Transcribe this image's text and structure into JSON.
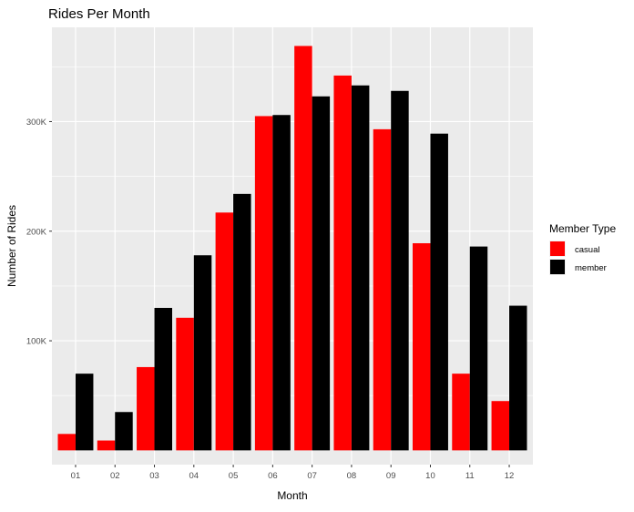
{
  "chart_data": {
    "type": "bar",
    "title": "Rides Per Month",
    "xlabel": "Month",
    "ylabel": "Number of Rides",
    "categories": [
      "01",
      "02",
      "03",
      "04",
      "05",
      "06",
      "07",
      "08",
      "09",
      "10",
      "11",
      "12"
    ],
    "series": [
      {
        "name": "casual",
        "color": "#FF0000",
        "values": [
          15000,
          9000,
          76000,
          121000,
          217000,
          305000,
          369000,
          342000,
          293000,
          189000,
          70000,
          45000
        ]
      },
      {
        "name": "member",
        "color": "#000000",
        "values": [
          70000,
          35000,
          130000,
          178000,
          234000,
          306000,
          323000,
          333000,
          328000,
          289000,
          186000,
          132000
        ]
      }
    ],
    "ylim": [
      -13000,
      386000
    ],
    "yticks": [
      100000,
      200000,
      300000
    ],
    "ytick_labels": [
      "100K",
      "200K",
      "300K"
    ],
    "legend_title": "Member Type",
    "legend_position": "right",
    "grid": true,
    "panel_background": "#EBEBEB"
  }
}
